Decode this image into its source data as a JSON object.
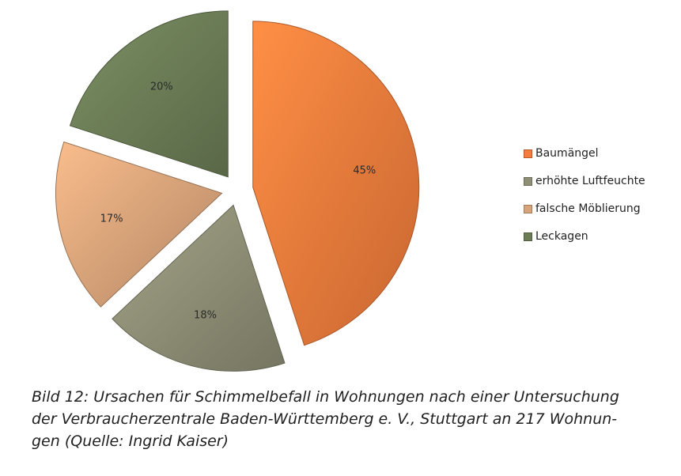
{
  "chart_data": {
    "type": "pie",
    "title": "",
    "slices": [
      {
        "label": "Baumängel",
        "value": 45,
        "value_label": "45%",
        "color": "#f47c3c"
      },
      {
        "label": "erhöhte Luftfeuchte",
        "value": 18,
        "value_label": "18%",
        "color": "#8f8f76"
      },
      {
        "label": "falsche Möblierung",
        "value": 17,
        "value_label": "17%",
        "color": "#d9a47a"
      },
      {
        "label": "Leckagen",
        "value": 20,
        "value_label": "20%",
        "color": "#6c7d56"
      }
    ],
    "exploded": true,
    "legend_position": "right"
  },
  "caption": {
    "lines": [
      "Bild 12: Ursachen für Schimmelbefall in Wohnungen nach einer Untersuchung",
      "der Verbraucherzentrale Baden-Württemberg e. V., Stuttgart an 217 Wohnun-",
      "gen (Quelle: Ingrid Kaiser)"
    ]
  }
}
